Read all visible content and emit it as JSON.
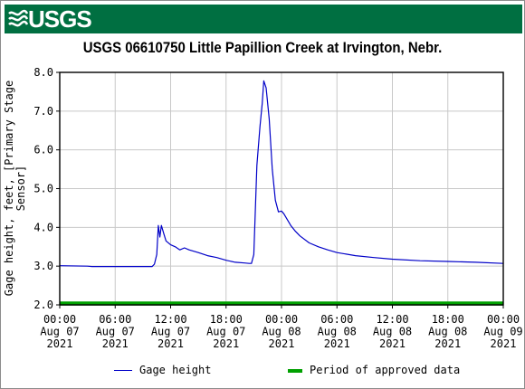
{
  "header": {
    "agency": "USGS",
    "colors": {
      "banner": "#006f41",
      "logo_text": "#ffffff"
    }
  },
  "chart_data": {
    "type": "line",
    "title": "USGS 06610750 Little Papillion Creek at Irvington, Nebr.",
    "ylabel": "Gage height, feet, [Primary Stage Sensor]",
    "xlabel": "",
    "ylim": [
      2.0,
      8.0
    ],
    "y_ticks": [
      "2.0",
      "3.0",
      "4.0",
      "5.0",
      "6.0",
      "7.0",
      "8.0"
    ],
    "x_ticks": [
      {
        "time": "00:00",
        "date": "Aug 07",
        "year": "2021"
      },
      {
        "time": "06:00",
        "date": "Aug 07",
        "year": "2021"
      },
      {
        "time": "12:00",
        "date": "Aug 07",
        "year": "2021"
      },
      {
        "time": "18:00",
        "date": "Aug 07",
        "year": "2021"
      },
      {
        "time": "00:00",
        "date": "Aug 08",
        "year": "2021"
      },
      {
        "time": "06:00",
        "date": "Aug 08",
        "year": "2021"
      },
      {
        "time": "12:00",
        "date": "Aug 08",
        "year": "2021"
      },
      {
        "time": "18:00",
        "date": "Aug 08",
        "year": "2021"
      },
      {
        "time": "00:00",
        "date": "Aug 09",
        "year": "2021"
      }
    ],
    "grid": true,
    "legend_position": "bottom",
    "series": [
      {
        "name": "Gage height",
        "color": "#0000c8",
        "x": [
          "2021-08-07 00:00",
          "2021-08-07 03:00",
          "2021-08-07 03:30",
          "2021-08-07 06:00",
          "2021-08-07 09:00",
          "2021-08-07 10:00",
          "2021-08-07 10:15",
          "2021-08-07 10:30",
          "2021-08-07 10:40",
          "2021-08-07 10:50",
          "2021-08-07 11:00",
          "2021-08-07 11:15",
          "2021-08-07 11:30",
          "2021-08-07 12:00",
          "2021-08-07 12:30",
          "2021-08-07 13:00",
          "2021-08-07 13:30",
          "2021-08-07 14:00",
          "2021-08-07 15:00",
          "2021-08-07 16:00",
          "2021-08-07 17:00",
          "2021-08-07 18:00",
          "2021-08-07 19:00",
          "2021-08-07 20:00",
          "2021-08-07 20:30",
          "2021-08-07 20:45",
          "2021-08-07 21:00",
          "2021-08-07 21:20",
          "2021-08-07 21:40",
          "2021-08-07 21:55",
          "2021-08-07 22:05",
          "2021-08-07 22:20",
          "2021-08-07 22:40",
          "2021-08-07 23:00",
          "2021-08-07 23:20",
          "2021-08-07 23:40",
          "2021-08-08 00:00",
          "2021-08-08 00:15",
          "2021-08-08 00:30",
          "2021-08-08 00:45",
          "2021-08-08 01:00",
          "2021-08-08 01:30",
          "2021-08-08 02:00",
          "2021-08-08 03:00",
          "2021-08-08 04:00",
          "2021-08-08 05:00",
          "2021-08-08 06:00",
          "2021-08-08 08:00",
          "2021-08-08 10:00",
          "2021-08-08 12:00",
          "2021-08-08 15:00",
          "2021-08-08 18:00",
          "2021-08-08 21:00",
          "2021-08-09 00:00"
        ],
        "y": [
          3.01,
          3.0,
          2.99,
          2.99,
          2.99,
          2.99,
          3.05,
          3.3,
          4.05,
          3.75,
          4.05,
          3.85,
          3.65,
          3.55,
          3.5,
          3.42,
          3.47,
          3.42,
          3.35,
          3.27,
          3.22,
          3.15,
          3.1,
          3.08,
          3.07,
          3.07,
          3.3,
          5.6,
          6.6,
          7.2,
          7.78,
          7.6,
          6.8,
          5.5,
          4.7,
          4.4,
          4.42,
          4.35,
          4.25,
          4.15,
          4.05,
          3.9,
          3.78,
          3.6,
          3.5,
          3.42,
          3.35,
          3.27,
          3.22,
          3.18,
          3.14,
          3.12,
          3.1,
          3.07
        ]
      },
      {
        "name": "Period of approved data",
        "color": "#00a000",
        "x": [
          "2021-08-07 00:00",
          "2021-08-09 00:00"
        ],
        "y": [
          2.0,
          2.0
        ]
      }
    ]
  }
}
